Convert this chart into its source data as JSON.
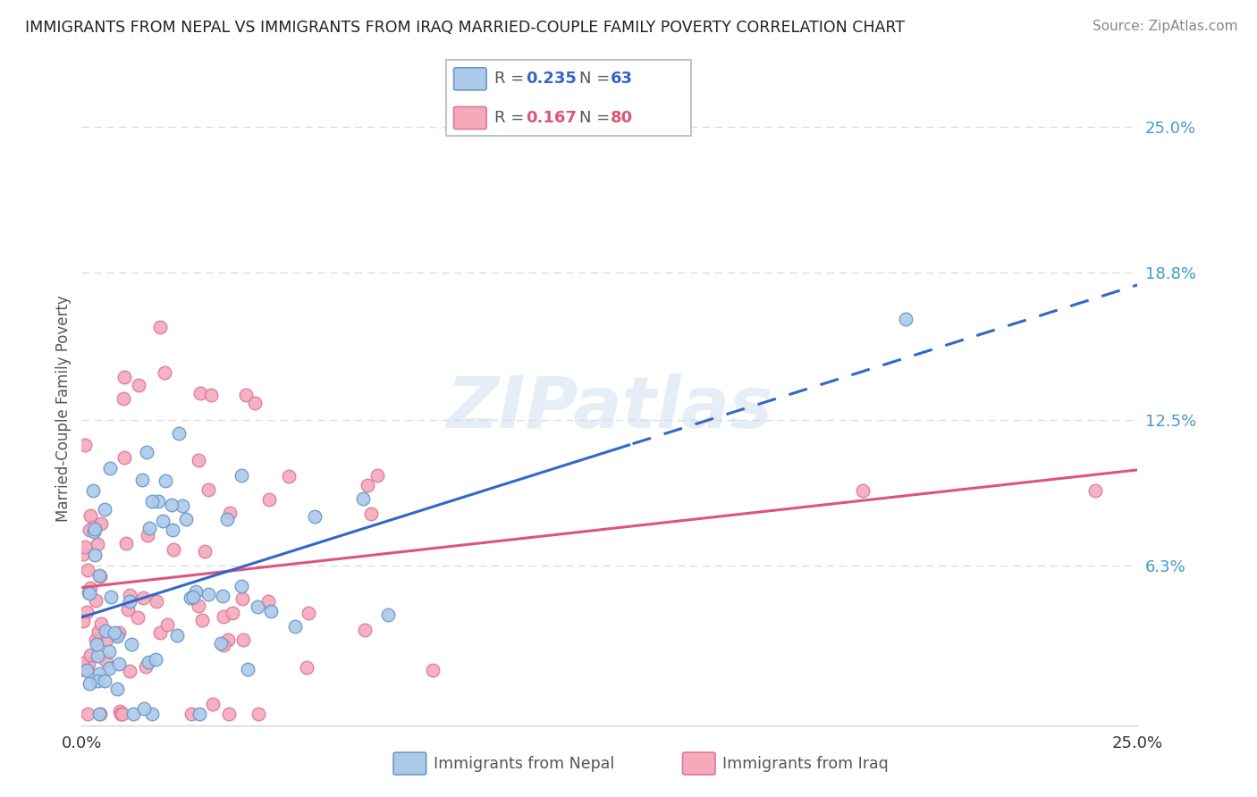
{
  "title": "IMMIGRANTS FROM NEPAL VS IMMIGRANTS FROM IRAQ MARRIED-COUPLE FAMILY POVERTY CORRELATION CHART",
  "source": "Source: ZipAtlas.com",
  "ylabel": "Married-Couple Family Poverty",
  "xlim": [
    0.0,
    0.25
  ],
  "ylim": [
    -0.005,
    0.265
  ],
  "ytick_values": [
    0.063,
    0.125,
    0.188,
    0.25
  ],
  "right_labels": [
    "6.3%",
    "12.5%",
    "18.8%",
    "25.0%"
  ],
  "nepal_color": "#adc9e8",
  "nepal_edge_color": "#6699cc",
  "iraq_color": "#f5aabb",
  "iraq_edge_color": "#dd7799",
  "nepal_line_color": "#3366cc",
  "iraq_line_color": "#dd5577",
  "nepal_R": 0.235,
  "nepal_N": 63,
  "iraq_R": 0.167,
  "iraq_N": 80,
  "watermark_color": "#ccddef",
  "background_color": "#ffffff",
  "grid_color": "#dddddd",
  "legend_box_color": "#aabbcc",
  "right_label_color": "#4499cc",
  "title_color": "#222222",
  "source_color": "#888888",
  "ylabel_color": "#555555"
}
